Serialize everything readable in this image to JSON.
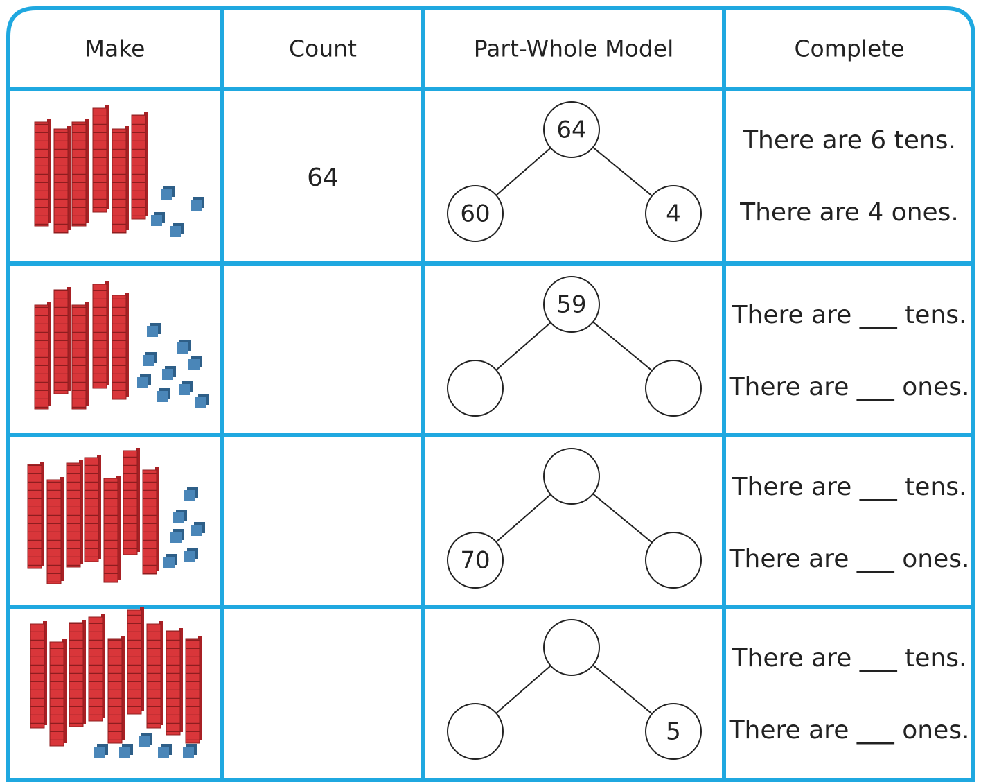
{
  "table": {
    "headers": [
      "Make",
      "Count",
      "Part-Whole Model",
      "Complete"
    ],
    "rows": [
      {
        "count": 64,
        "model": {
          "whole": 64,
          "left": 60,
          "right": 4
        },
        "complete": [
          "There are 6 tens.",
          "There are 4 ones."
        ]
      },
      {
        "model": {
          "whole": 59
        },
        "complete": [
          "There are ___ tens.",
          "There are ___ ones."
        ]
      },
      {
        "model": {
          "left": 70
        },
        "complete": [
          "There are ___ tens.",
          "There are ___ ones."
        ]
      },
      {
        "model": {
          "right": 5
        },
        "complete": [
          "There are ___ tens.",
          "There are ___ ones."
        ]
      }
    ]
  }
}
